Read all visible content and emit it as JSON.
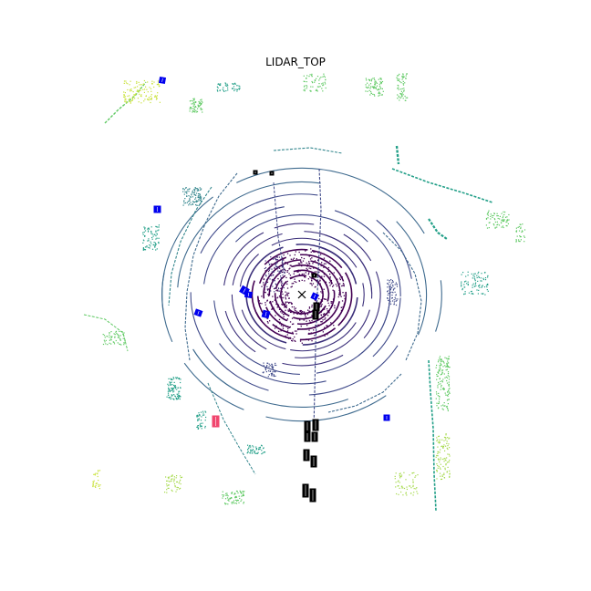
{
  "title": "LIDAR_TOP",
  "colors": {
    "ring_near": "#440154",
    "ring_mid1": "#3b2f7a",
    "ring_mid2": "#3f4a8a",
    "ring_mid3": "#3e6a8e",
    "ring_far": "#33868d",
    "teal": "#24a089",
    "green": "#5ec962",
    "lime": "#a5d94a",
    "yellow_green": "#c9e23a",
    "box_blue": "#0000ee",
    "box_black": "#000000",
    "box_red": "#f0466e",
    "ego_marker": "#000000"
  },
  "ego_marker_icon": "x-mark-icon"
}
